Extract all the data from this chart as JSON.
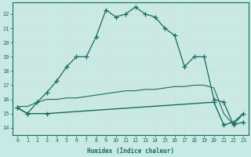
{
  "xlabel": "Humidex (Indice chaleur)",
  "xlim": [
    -0.5,
    23.5
  ],
  "ylim": [
    13.5,
    22.8
  ],
  "yticks": [
    14,
    15,
    16,
    17,
    18,
    19,
    20,
    21,
    22
  ],
  "xticks": [
    0,
    1,
    2,
    3,
    4,
    5,
    6,
    7,
    8,
    9,
    10,
    11,
    12,
    13,
    14,
    15,
    16,
    17,
    18,
    19,
    20,
    21,
    22,
    23
  ],
  "bg_color": "#c8eae4",
  "grid_color": "#dcdcdc",
  "line_color": "#1a6b5a",
  "series_main_x": [
    0,
    1,
    2,
    3,
    4,
    5,
    6,
    7,
    8,
    9,
    10,
    11,
    12,
    13,
    14,
    15,
    16,
    17,
    18,
    19,
    20,
    21,
    22,
    23
  ],
  "series_main_y": [
    15.4,
    15.0,
    15.8,
    16.5,
    17.3,
    18.3,
    19.0,
    19.0,
    20.4,
    22.3,
    21.8,
    22.0,
    22.5,
    22.0,
    21.8,
    21.0,
    20.5,
    18.3,
    19.0,
    19.0,
    16.0,
    15.8,
    14.2,
    14.4
  ],
  "series_flat_x": [
    0,
    1,
    3,
    20,
    21,
    22,
    23
  ],
  "series_flat_y": [
    15.4,
    15.0,
    15.0,
    15.8,
    14.2,
    14.4,
    15.0
  ],
  "series_slow_x": [
    0,
    1,
    2,
    3,
    4,
    5,
    6,
    7,
    8,
    9,
    10,
    11,
    12,
    13,
    14,
    15,
    16,
    17,
    18,
    19,
    20,
    21,
    22,
    23
  ],
  "series_slow_y": [
    15.5,
    15.5,
    15.8,
    16.0,
    16.0,
    16.1,
    16.1,
    16.2,
    16.3,
    16.4,
    16.5,
    16.6,
    16.6,
    16.7,
    16.7,
    16.8,
    16.9,
    16.9,
    17.0,
    17.0,
    16.8,
    15.0,
    14.2,
    15.0
  ]
}
